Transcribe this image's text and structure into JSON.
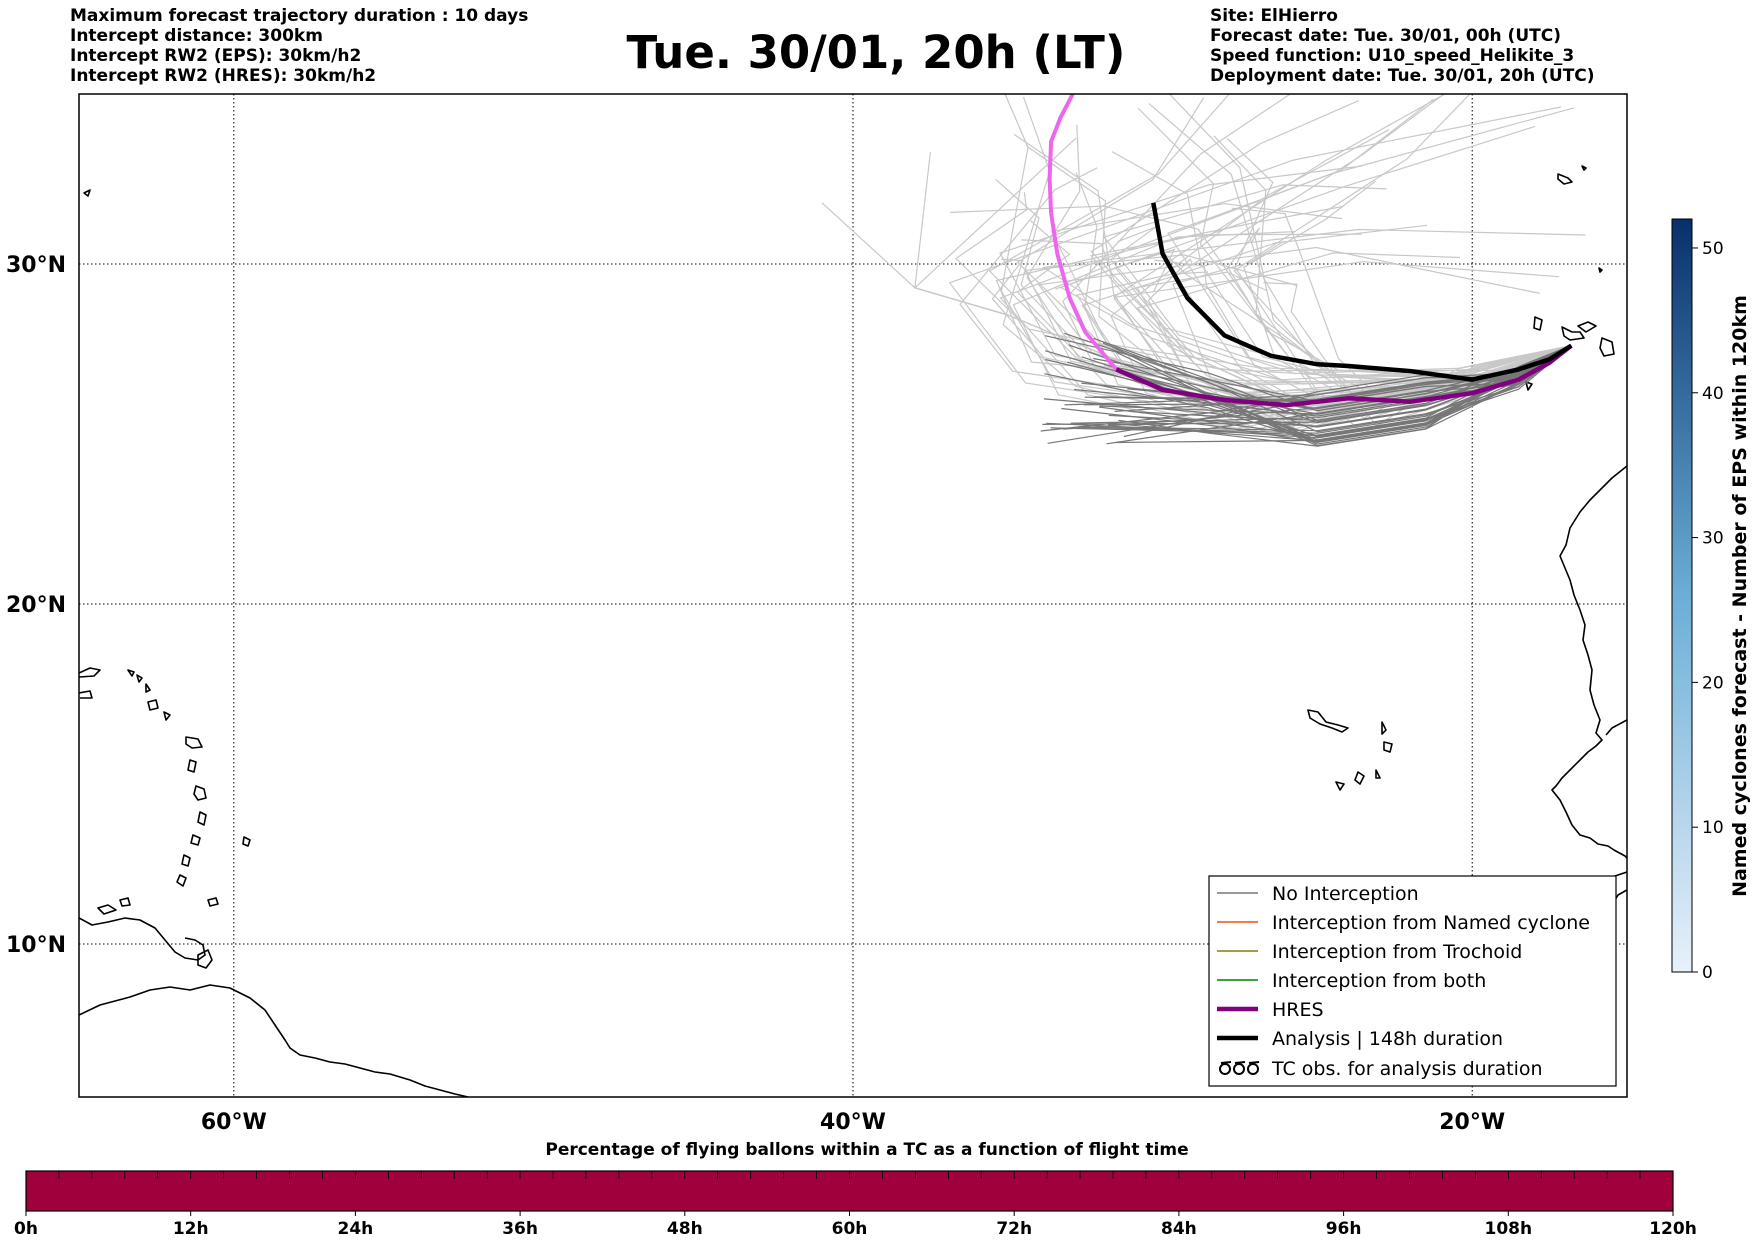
{
  "header": {
    "title": "Tue. 30/01, 20h (LT)",
    "left_lines": [
      "Maximum forecast trajectory duration : 10 days",
      "Intercept distance: 300km",
      "Intercept RW2 (EPS):  30km/h2",
      "Intercept RW2 (HRES): 30km/h2"
    ],
    "right_lines": [
      "Site: ElHierro",
      "Forecast date: Tue. 30/01, 00h (UTC)",
      "Speed function: U10_speed_Helikite_3",
      "Deployment date: Tue. 30/01, 20h (UTC)"
    ]
  },
  "map": {
    "lon_range": [
      -65,
      -15
    ],
    "lat_range": [
      5.5,
      35
    ],
    "lat_labels": [
      "30°N",
      "20°N",
      "10°N"
    ],
    "lon_labels": [
      "60°W",
      "40°W",
      "20°W"
    ],
    "gridlines": true,
    "hres_track": [
      [
        -16.8,
        27.6
      ],
      [
        -17.5,
        27.1
      ],
      [
        -18.5,
        26.6
      ],
      [
        -20,
        26.2
      ],
      [
        -22,
        25.95
      ],
      [
        -24,
        26.05
      ],
      [
        -26,
        25.85
      ],
      [
        -28,
        26.0
      ],
      [
        -30,
        26.3
      ],
      [
        -31.5,
        26.9
      ],
      [
        -32.5,
        28.0
      ],
      [
        -33,
        29.0
      ],
      [
        -33.4,
        30.3
      ],
      [
        -33.6,
        31.5
      ],
      [
        -33.65,
        32.5
      ],
      [
        -33.6,
        33.6
      ],
      [
        -33.3,
        34.3
      ],
      [
        -32.9,
        35.0
      ]
    ],
    "analysis_track": [
      [
        -16.8,
        27.6
      ],
      [
        -17.5,
        27.2
      ],
      [
        -18.5,
        26.9
      ],
      [
        -20,
        26.6
      ],
      [
        -22,
        26.85
      ],
      [
        -24,
        27.0
      ],
      [
        -25,
        27.05
      ],
      [
        -26.5,
        27.3
      ],
      [
        -28,
        27.9
      ],
      [
        -29.2,
        29.0
      ],
      [
        -30,
        30.3
      ],
      [
        -30.3,
        31.8
      ]
    ],
    "colors": {
      "land": "#000000",
      "no_interception": "#777777",
      "named_cyclone": "#f05010",
      "trochoid": "#808000",
      "both": "#008000",
      "hres": "#800080",
      "hres_light": "#ee66ee",
      "analysis": "#000000",
      "eps_light": "#c8c8c8"
    }
  },
  "legend": {
    "entries": [
      "No Interception",
      "Interception from Named cyclone",
      "Interception from Trochoid",
      "Interception from both",
      "HRES",
      "Analysis | 148h duration",
      "TC obs. for analysis duration"
    ],
    "tc_symbol": "ᘏᘏᘏ"
  },
  "colorbar_right": {
    "label": "Named cyclones forecast - Number of EPS within 120km",
    "ticks": [
      "0",
      "10",
      "20",
      "30",
      "40",
      "50"
    ],
    "min": 0,
    "max": 52,
    "color_low": "#e8f1fa",
    "color_high": "#08306b"
  },
  "colorbar_bottom": {
    "label": "Percentage of flying ballons within a TC as a function of flight time",
    "ticks": [
      "0h",
      "12h",
      "24h",
      "36h",
      "48h",
      "60h",
      "72h",
      "84h",
      "96h",
      "108h",
      "120h"
    ],
    "fill": "#a0003c",
    "segments": 50
  }
}
